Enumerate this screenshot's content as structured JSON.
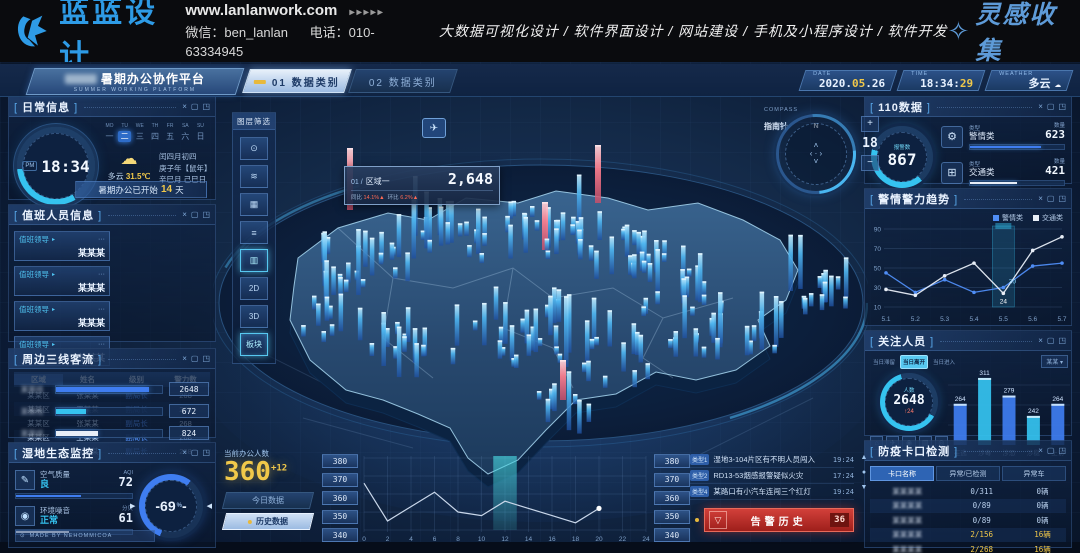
{
  "site_header": {
    "logo_text": "蓝蓝设计",
    "website": "www.lanlanwork.com",
    "website_arrows": "▸▸▸▸▸",
    "wechat": "微信：ben_lanlan",
    "phone": "电话：010-63334945",
    "services": "大数据可视化设计 / 软件界面设计 / 网站建设 / 手机及小程序设计 / 软件开发",
    "collection_label": "灵感收集"
  },
  "panel_controls": [
    "×",
    "▢",
    "◳"
  ],
  "topbar": {
    "title": "暑期办公协作平台",
    "subtitle": "SUMMER WORKING PLATFORM",
    "tabs": [
      {
        "label": "01 数据类别",
        "active": true
      },
      {
        "label": "02 数据类别",
        "active": false
      }
    ],
    "date": {
      "label": "DATE",
      "year": "2020",
      "month": "05",
      "day": "26"
    },
    "time": {
      "label": "TIME",
      "hm": "18:34",
      "sec": "29"
    },
    "weather": {
      "label": "WEATHER",
      "text": "多云",
      "icon": "☁"
    }
  },
  "panels": {
    "daily": {
      "title": "日常信息",
      "clock": {
        "period": "PM",
        "time": "18:34"
      },
      "weekdays_en": [
        "MO",
        "TU",
        "WE",
        "TH",
        "FR",
        "SA",
        "SU"
      ],
      "weekdays_cn": [
        "一",
        "二",
        "三",
        "四",
        "五",
        "六",
        "日"
      ],
      "active_weekday": 1,
      "weather_icon": "☁",
      "weather_text": "多云",
      "temperature": "31.5℃",
      "lunar_lines": [
        "闰四月初四",
        "庚子年【鼠年】",
        "辛巳月 己巳日"
      ],
      "notice": {
        "prefix": "暑期办公已开始",
        "days": "14",
        "suffix": "天"
      }
    },
    "duty": {
      "title": "值班人员信息",
      "cards": [
        {
          "role": "值班领导",
          "name": "某某某"
        },
        {
          "role": "值班领导",
          "name": "某某某"
        },
        {
          "role": "值班领导",
          "name": "某某某"
        },
        {
          "role": "值班领导",
          "name": "某某某"
        }
      ],
      "table_headers": [
        "区域",
        "姓名",
        "级别",
        "警力数"
      ],
      "table_rows": [
        [
          "某某区",
          "张某某",
          "副局长",
          "268"
        ],
        [
          "某某区",
          "王某某",
          "副局长",
          "268"
        ],
        [
          "某某区",
          "张某某",
          "副局长",
          "268"
        ],
        [
          "某某区",
          "王某某",
          "副局长",
          "268"
        ],
        [
          "某某区",
          "张某某",
          "副局长",
          "268"
        ]
      ]
    },
    "flow": {
      "title": "周边三线客流",
      "bars": [
        {
          "label": "某某线",
          "value": "2648",
          "pct": 88,
          "color": "#3f7df0"
        },
        {
          "label": "某某线",
          "value": "672",
          "pct": 28,
          "color": "#35c3f0"
        },
        {
          "label": "某某线",
          "value": "824",
          "pct": 40,
          "color": "#e8eef7"
        }
      ]
    },
    "eco": {
      "title": "湿地生态监控",
      "metrics": [
        {
          "icon": "air-quality-icon",
          "glyph": "✎",
          "label": "空气质量",
          "status": "良",
          "value": "72",
          "unit": "AQI",
          "pct": 56,
          "color": "#3f7df0"
        },
        {
          "icon": "noise-icon",
          "glyph": "◉",
          "label": "环境噪音",
          "status": "正常",
          "value": "61",
          "unit": "分贝",
          "pct": 46,
          "color": "#e8eef7"
        }
      ],
      "gauge": {
        "value": "69",
        "unit": "%"
      },
      "footer": "MADE BY NEHOMMICOA"
    },
    "data110": {
      "title": "110数据",
      "gauge": {
        "label": "报警数",
        "value": "867"
      },
      "rows": [
        {
          "icon": "alarm-gear-icon",
          "glyph": "⚙",
          "type_label": "类型",
          "name": "警情类",
          "count_label": "数量",
          "value": "623",
          "pct": 76,
          "color": "#3f7df0"
        },
        {
          "icon": "traffic-bus-icon",
          "glyph": "⊞",
          "type_label": "类型",
          "name": "交通类",
          "count_label": "数量",
          "value": "421",
          "pct": 50,
          "color": "#e8eef7"
        }
      ]
    },
    "trend": {
      "title": "警情警力趋势",
      "chart_data": {
        "type": "line",
        "categories": [
          "5.1",
          "5.2",
          "5.3",
          "5.4",
          "5.5",
          "5.6",
          "5.7"
        ],
        "series": [
          {
            "name": "警情类",
            "color": "#4f8df5",
            "values": [
              45,
              25,
              38,
              25,
              30,
              52,
              55
            ]
          },
          {
            "name": "交通类",
            "color": "#e8eef7",
            "values": [
              28,
              22,
              42,
              55,
              24,
              68,
              82
            ]
          }
        ],
        "yticks": [
          90,
          70,
          50,
          30,
          10
        ],
        "ylim": [
          10,
          90
        ],
        "highlight_index": 4,
        "highlight_labels": {
          "blue": "30",
          "white": "24"
        }
      }
    },
    "focus": {
      "title": "关注人员",
      "tabs": [
        {
          "label": "当日滞留",
          "active": false
        },
        {
          "label": "当日离开",
          "active": true
        },
        {
          "label": "当日进入",
          "active": false
        }
      ],
      "gauge": {
        "label": "人数",
        "value": "2648",
        "delta": "↑24"
      },
      "tool_icons": [
        "⌂",
        "✈",
        "◉",
        "▤",
        "◎"
      ],
      "filter_label": "某某 ▾",
      "chart_data": {
        "type": "bar",
        "categories": [
          "在逃",
          "涉毒",
          "涉恐",
          "涉稳",
          "上访"
        ],
        "values": [
          264,
          311,
          279,
          242,
          264
        ],
        "colors": [
          "#3f7df0",
          "#35c3f0",
          "#3f7df0",
          "#35c3f0",
          "#3f7df0"
        ],
        "vmin": 200,
        "vmax": 320
      }
    },
    "checkpoint": {
      "title": "防疫卡口检测",
      "headers": [
        "卡口名称",
        "异常/已检测",
        "异常车"
      ],
      "rows": [
        {
          "name": "某某某某",
          "ratio": "0/311",
          "cars": "0辆",
          "warn": false
        },
        {
          "name": "某某某某",
          "ratio": "0/89",
          "cars": "0辆",
          "warn": false
        },
        {
          "name": "某某某某",
          "ratio": "0/89",
          "cars": "0辆",
          "warn": false
        },
        {
          "name": "某某某某",
          "ratio": "2/156",
          "cars": "16辆",
          "warn": true
        },
        {
          "name": "某某某某",
          "ratio": "2/268",
          "cars": "16辆",
          "warn": true
        }
      ]
    }
  },
  "layer_panel": {
    "title": "图层筛选",
    "buttons": [
      {
        "name": "camera-layer",
        "glyph": "⊙",
        "active": false
      },
      {
        "name": "signal-layer",
        "glyph": "≋",
        "active": false
      },
      {
        "name": "grid-layer",
        "glyph": "▦",
        "active": false
      },
      {
        "name": "list-layer",
        "glyph": "≡",
        "active": false
      },
      {
        "name": "chart-layer",
        "glyph": "▥",
        "active": true
      },
      {
        "name": "2d-mode",
        "glyph": "2D",
        "active": false
      },
      {
        "name": "3d-mode",
        "glyph": "3D",
        "active": false
      },
      {
        "name": "district-mode",
        "glyph": "板块",
        "active": true
      }
    ]
  },
  "map": {
    "tooltip": {
      "index": "01 /",
      "name": "区域一",
      "value": "2,648",
      "yoy_label": "同比",
      "yoy": "14.1%",
      "mom_label": "环比",
      "mom": "6.2%",
      "arrow": "▲"
    },
    "compass": {
      "label_en": "COMPASS",
      "label_cn": "指南针",
      "north": "N",
      "zoom_in": "+",
      "zoom_out": "−",
      "level": "18"
    },
    "plane_icon": "✈"
  },
  "office": {
    "label": "当前办公人数",
    "value": "360",
    "delta": "+12",
    "buttons": [
      {
        "label": "今日数据",
        "active": false
      },
      {
        "label": "历史数据",
        "active": true
      }
    ],
    "chart_data": {
      "type": "line",
      "x_ticks": [
        0,
        2,
        4,
        6,
        8,
        10,
        12,
        14,
        16,
        18,
        20,
        22,
        24
      ],
      "y_boxes": [
        380,
        370,
        360,
        350,
        340
      ],
      "values_x": [
        0,
        2,
        4,
        6,
        8,
        10,
        12,
        14,
        16,
        18,
        20
      ],
      "values": [
        366,
        345,
        353,
        361,
        350,
        348,
        356,
        352,
        348,
        344,
        352
      ],
      "ylim": [
        340,
        380
      ],
      "highlight_x": [
        11,
        13
      ]
    }
  },
  "alerts": {
    "items": [
      {
        "tag": "类型1",
        "text": "湿地3-104片区有不明人员闯入",
        "time": "19:24"
      },
      {
        "tag": "类型2",
        "text": "RD13-53烟感报警疑似火灾",
        "time": "17:24"
      },
      {
        "tag": "类型4",
        "text": "某路口有小汽车连闯三个红灯",
        "time": "19:24"
      }
    ],
    "scroll_icons": [
      "▲",
      "●",
      "▼"
    ],
    "history": {
      "label": "告警历史",
      "count": "36",
      "icon": "▽"
    }
  }
}
